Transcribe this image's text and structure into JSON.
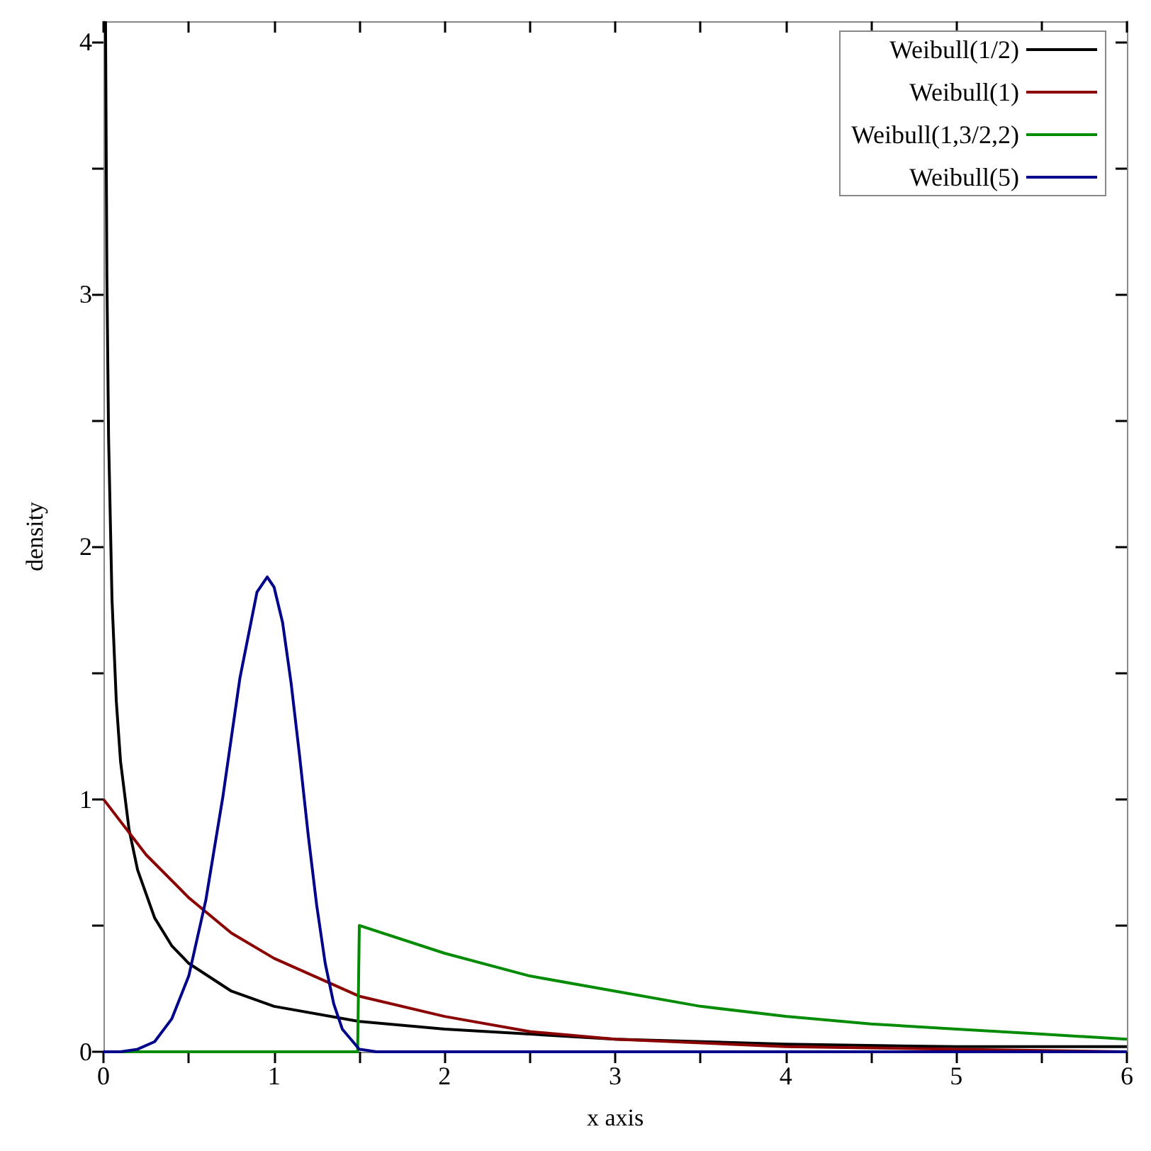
{
  "chart_data": {
    "type": "line",
    "xlabel": "x axis",
    "ylabel": "density",
    "xlim": [
      0,
      6
    ],
    "ylim": [
      0,
      4.08
    ],
    "xticks": [
      0,
      {
        "value": 0.5,
        "label": null
      },
      1,
      {
        "value": 1.5,
        "label": null
      },
      2,
      {
        "value": 2.5,
        "label": null
      },
      3,
      {
        "value": 3.5,
        "label": null
      },
      4,
      {
        "value": 4.5,
        "label": null
      },
      5,
      {
        "value": 5.5,
        "label": null
      },
      6
    ],
    "yticks": [
      0,
      {
        "value": 0.5,
        "label": null
      },
      1,
      {
        "value": 1.5,
        "label": null
      },
      2,
      {
        "value": 2.5,
        "label": null
      },
      3,
      {
        "value": 3.5,
        "label": null
      },
      4
    ],
    "grid": false,
    "legend": "top right",
    "marker": "none",
    "series": [
      {
        "name": "Weibull(1/2)",
        "color": "#000000",
        "x": [
          0.012,
          0.02,
          0.03,
          0.05,
          0.075,
          0.1,
          0.15,
          0.2,
          0.3,
          0.4,
          0.5,
          0.75,
          1,
          1.5,
          2,
          2.5,
          3,
          4,
          5,
          6
        ],
        "values": [
          4.08,
          3.07,
          2.43,
          1.79,
          1.39,
          1.15,
          0.88,
          0.72,
          0.53,
          0.42,
          0.35,
          0.24,
          0.18,
          0.12,
          0.09,
          0.07,
          0.05,
          0.03,
          0.02,
          0.02
        ]
      },
      {
        "name": "Weibull(1)",
        "color": "#8b0000",
        "x": [
          0,
          0.25,
          0.5,
          0.75,
          1,
          1.5,
          2,
          2.5,
          3,
          4,
          5,
          6
        ],
        "values": [
          1,
          0.78,
          0.61,
          0.47,
          0.37,
          0.22,
          0.14,
          0.08,
          0.05,
          0.02,
          0.01,
          0
        ]
      },
      {
        "name": "Weibull(1,3/2,2)",
        "color": "#008b00",
        "x": [
          0,
          1.49,
          1.5,
          2,
          2.5,
          3,
          3.5,
          4,
          4.5,
          5,
          5.5,
          6
        ],
        "values": [
          0,
          0,
          0.5,
          0.39,
          0.3,
          0.24,
          0.18,
          0.14,
          0.11,
          0.09,
          0.07,
          0.05
        ]
      },
      {
        "name": "Weibull(5)",
        "color": "#00008b",
        "x": [
          0,
          0.1,
          0.2,
          0.3,
          0.4,
          0.5,
          0.6,
          0.7,
          0.8,
          0.9,
          0.96,
          1,
          1.05,
          1.1,
          1.15,
          1.2,
          1.25,
          1.3,
          1.35,
          1.4,
          1.5,
          1.6,
          2,
          6
        ],
        "values": [
          0,
          0,
          0.01,
          0.04,
          0.13,
          0.3,
          0.6,
          1.01,
          1.48,
          1.82,
          1.88,
          1.84,
          1.7,
          1.46,
          1.17,
          0.86,
          0.58,
          0.35,
          0.19,
          0.09,
          0.01,
          0,
          0,
          0
        ]
      }
    ]
  }
}
